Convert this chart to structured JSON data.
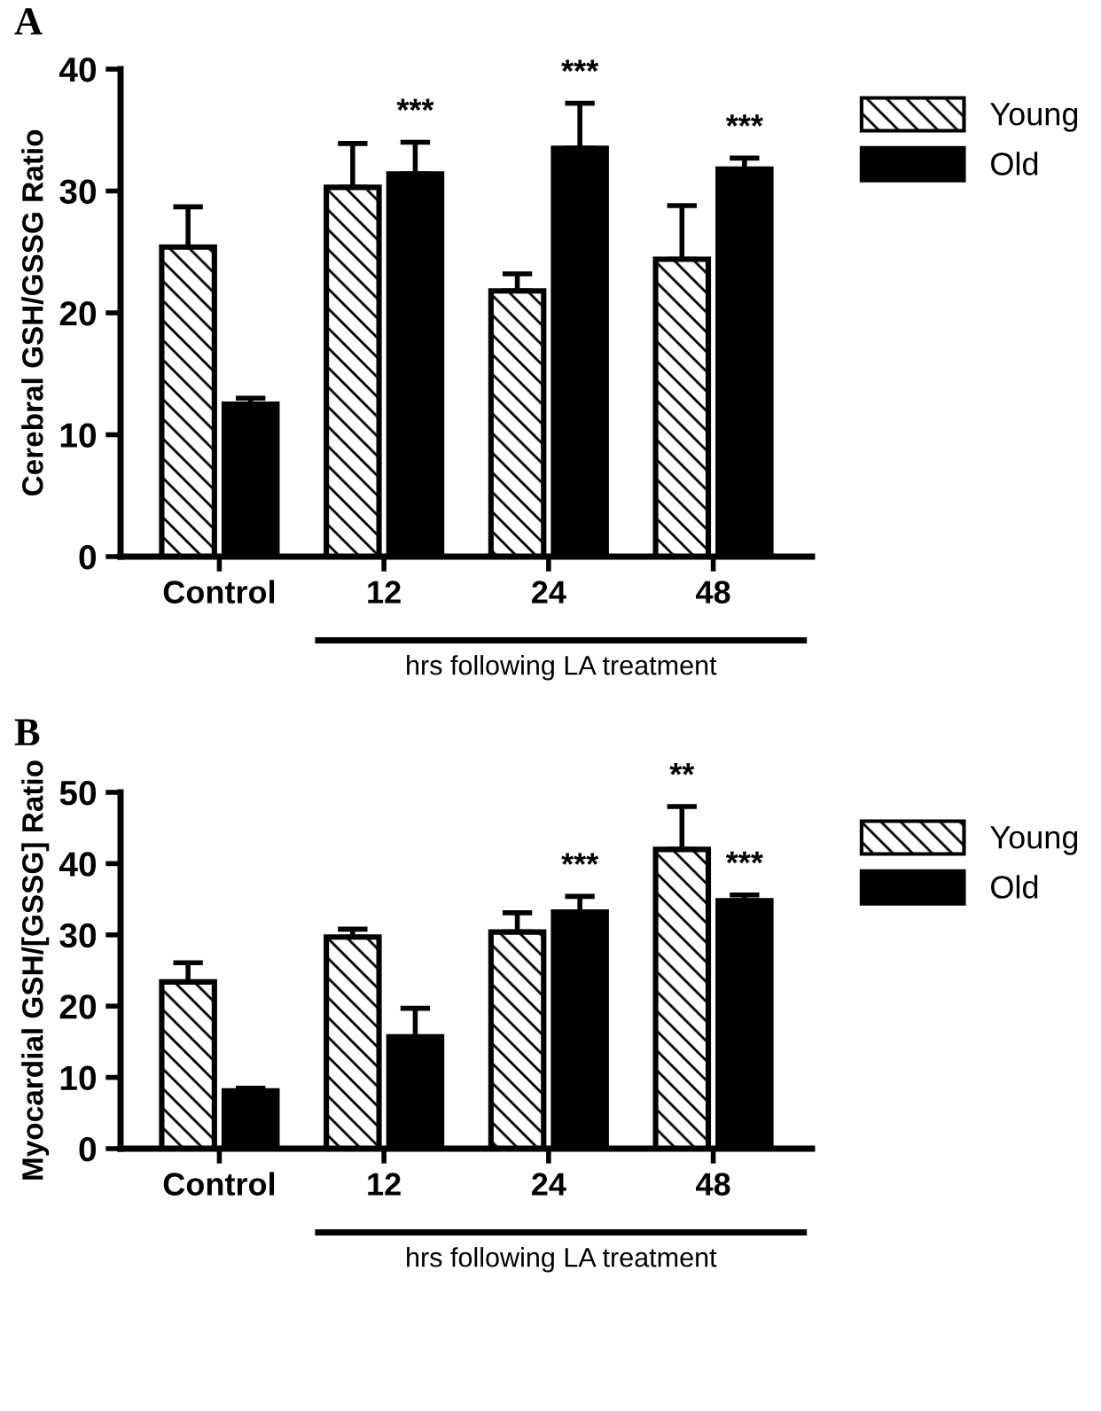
{
  "chart_data": [
    {
      "type": "bar",
      "title": "A",
      "ylabel": "Cerebral GSH/GSSG Ratio",
      "categories": [
        "Control",
        "12",
        "24",
        "48"
      ],
      "series": [
        {
          "name": "Young",
          "color": "#ffffff",
          "values": [
            25.4,
            30.3,
            21.8,
            24.4
          ],
          "errors": [
            3.3,
            3.6,
            1.4,
            4.4
          ]
        },
        {
          "name": "Old",
          "color": "#000000",
          "values": [
            12.5,
            31.4,
            33.5,
            31.8
          ],
          "errors": [
            0.5,
            2.6,
            3.7,
            0.9
          ]
        }
      ],
      "ylim": [
        0,
        40
      ],
      "yticks": [
        0,
        10,
        20,
        30,
        40
      ],
      "grid": false,
      "legend": "top right",
      "annotations": [
        {
          "text": "***",
          "x": "12",
          "y": 31.4
        },
        {
          "text": "***",
          "x": "24",
          "y": 33.5
        },
        {
          "text": "***",
          "x": "48",
          "y": 31.8
        },
        "hrs following LA treatment"
      ]
    },
    {
      "type": "bar",
      "title": "B",
      "ylabel": "Myocardial GSH/[GSSG] Ratio",
      "categories": [
        "Control",
        "12",
        "24",
        "48"
      ],
      "series": [
        {
          "name": "Young",
          "color": "#ffffff",
          "values": [
            23.4,
            29.7,
            30.4,
            42.0
          ],
          "errors": [
            2.7,
            1.1,
            2.7,
            6.0
          ]
        },
        {
          "name": "Old",
          "color": "#000000",
          "values": [
            8.1,
            15.7,
            33.2,
            34.8
          ],
          "errors": [
            0.4,
            4.0,
            2.2,
            0.8
          ]
        }
      ],
      "ylim": [
        0,
        50
      ],
      "yticks": [
        0,
        10,
        20,
        30,
        40,
        50
      ],
      "grid": false,
      "legend": "top right",
      "annotations": [
        {
          "text": "***",
          "x": "24",
          "y": 33.2
        },
        {
          "text": "**",
          "x": "48",
          "y": 42.0
        },
        {
          "text": "***",
          "x": "48",
          "y": 34.8
        },
        "hrs following LA treatment"
      ]
    }
  ]
}
